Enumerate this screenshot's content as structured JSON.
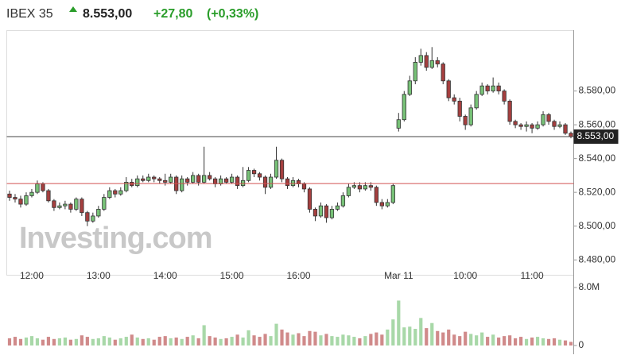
{
  "header": {
    "change": "+27,80",
    "change_percent": "(+0,33%)"
  },
  "chart_data": {
    "type": "candlestick",
    "title": "IBEX 35",
    "watermark": "Investing.com",
    "last_price": {
      "value": 8553,
      "label": "8.553,00"
    },
    "previous_close": 8525.2,
    "categories": [
      null,
      null,
      null,
      null,
      "12:00",
      null,
      null,
      null,
      null,
      null,
      null,
      null,
      null,
      null,
      null,
      null,
      "13:00",
      null,
      null,
      null,
      null,
      null,
      null,
      null,
      null,
      null,
      null,
      null,
      "14:00",
      null,
      null,
      null,
      null,
      null,
      null,
      null,
      null,
      null,
      null,
      null,
      "15:00",
      null,
      null,
      null,
      null,
      null,
      null,
      null,
      null,
      null,
      null,
      null,
      "16:00",
      null,
      null,
      null,
      null,
      null,
      null,
      null,
      null,
      null,
      null,
      null,
      null,
      null,
      null,
      null,
      null,
      null,
      "Mar 11",
      null,
      null,
      null,
      null,
      null,
      null,
      null,
      null,
      null,
      null,
      null,
      "10:00",
      null,
      null,
      null,
      null,
      null,
      null,
      null,
      null,
      null,
      null,
      null,
      "11:00",
      null,
      null,
      null,
      null,
      null,
      null,
      null
    ],
    "open": [
      8519,
      8517,
      8516,
      8513,
      8518,
      8520,
      8525,
      8521,
      8515,
      8511,
      8512,
      8513,
      8510,
      8516,
      8508,
      8503,
      8506,
      8510,
      8517,
      8521,
      8519,
      8521,
      8526,
      8524,
      8528,
      8527,
      8529,
      8528,
      8527,
      8526,
      8529,
      8521,
      8528,
      8526,
      8530,
      8526,
      8530,
      8528,
      8525,
      8528,
      8526,
      8529,
      8524,
      8527,
      8533,
      8531,
      8529,
      8523,
      8529,
      8539,
      8528,
      8524,
      8527,
      8525,
      8522,
      8510,
      8506,
      8512,
      8505,
      8510,
      8512,
      8518,
      8523,
      8524,
      8522,
      8524,
      8523,
      8514,
      8512,
      8514,
      8558,
      8563,
      8578,
      8586,
      8597,
      8601,
      8594,
      8598,
      8596,
      8586,
      8576,
      8574,
      8565,
      8560,
      8570,
      8578,
      8583,
      8580,
      8583,
      8580,
      8574,
      8562,
      8560,
      8559,
      8560,
      8558,
      8560,
      8566,
      8562,
      8559,
      8560,
      8555
    ],
    "high": [
      8521,
      8519,
      8518,
      8520,
      8522,
      8527,
      8526,
      8522,
      8516,
      8514,
      8515,
      8514,
      8517,
      8517,
      8509,
      8508,
      8512,
      8519,
      8523,
      8522,
      8523,
      8529,
      8528,
      8530,
      8530,
      8531,
      8530,
      8529,
      8531,
      8531,
      8530,
      8530,
      8529,
      8532,
      8531,
      8547,
      8532,
      8529,
      8530,
      8529,
      8531,
      8530,
      8535,
      8535,
      8534,
      8532,
      8530,
      8531,
      8547,
      8540,
      8529,
      8529,
      8528,
      8526,
      8523,
      8511,
      8514,
      8513,
      8512,
      8514,
      8520,
      8525,
      8526,
      8526,
      8526,
      8526,
      8524,
      8516,
      8516,
      8525,
      8567,
      8580,
      8589,
      8600,
      8605,
      8603,
      8606,
      8600,
      8597,
      8587,
      8578,
      8576,
      8566,
      8572,
      8580,
      8585,
      8584,
      8588,
      8585,
      8581,
      8575,
      8563,
      8561,
      8562,
      8561,
      8562,
      8568,
      8567,
      8563,
      8562,
      8561,
      8556
    ],
    "low": [
      8515,
      8514,
      8511,
      8512,
      8517,
      8519,
      8520,
      8514,
      8509,
      8510,
      8510,
      8508,
      8509,
      8506,
      8500,
      8502,
      8505,
      8509,
      8516,
      8517,
      8518,
      8520,
      8523,
      8523,
      8526,
      8526,
      8526,
      8525,
      8524,
      8525,
      8519,
      8520,
      8524,
      8525,
      8524,
      8525,
      8527,
      8523,
      8524,
      8525,
      8525,
      8522,
      8523,
      8526,
      8529,
      8527,
      8519,
      8522,
      8528,
      8526,
      8522,
      8523,
      8523,
      8520,
      8508,
      8503,
      8505,
      8502,
      8504,
      8509,
      8511,
      8517,
      8522,
      8520,
      8521,
      8521,
      8512,
      8510,
      8511,
      8513,
      8556,
      8562,
      8577,
      8584,
      8595,
      8592,
      8593,
      8594,
      8584,
      8574,
      8572,
      8562,
      8557,
      8559,
      8569,
      8577,
      8578,
      8579,
      8578,
      8572,
      8560,
      8558,
      8557,
      8556,
      8555,
      8557,
      8559,
      8560,
      8557,
      8558,
      8554,
      8552
    ],
    "close": [
      8517,
      8516,
      8513,
      8518,
      8520,
      8525,
      8521,
      8515,
      8511,
      8512,
      8513,
      8510,
      8516,
      8508,
      8503,
      8506,
      8510,
      8517,
      8521,
      8519,
      8521,
      8526,
      8524,
      8528,
      8527,
      8529,
      8528,
      8527,
      8526,
      8529,
      8521,
      8528,
      8526,
      8530,
      8526,
      8530,
      8528,
      8525,
      8528,
      8526,
      8529,
      8524,
      8527,
      8533,
      8531,
      8529,
      8523,
      8529,
      8539,
      8528,
      8524,
      8527,
      8525,
      8522,
      8510,
      8506,
      8512,
      8505,
      8510,
      8512,
      8518,
      8523,
      8524,
      8522,
      8524,
      8523,
      8514,
      8512,
      8514,
      8524,
      8563,
      8578,
      8586,
      8597,
      8601,
      8594,
      8598,
      8596,
      8586,
      8576,
      8574,
      8565,
      8560,
      8570,
      8578,
      8583,
      8580,
      8583,
      8580,
      8574,
      8562,
      8560,
      8559,
      8560,
      8558,
      8560,
      8566,
      8562,
      8559,
      8560,
      8555,
      8553
    ],
    "up_color": "#77c177",
    "down_color": "#a53f3f",
    "ylim": [
      8474,
      8616
    ],
    "yticks": [
      {
        "value": 8480,
        "label": "8.480,00"
      },
      {
        "value": 8500,
        "label": "8.500,00"
      },
      {
        "value": 8520,
        "label": "8.520,00"
      },
      {
        "value": 8540,
        "label": "8.540,00"
      },
      {
        "value": 8560,
        "label": "8.560,00"
      },
      {
        "value": 8580,
        "label": "8.580,00"
      }
    ],
    "volume": {
      "up_color": "#a8d8a8",
      "down_color": "#d08a8a",
      "ylim": [
        0,
        8
      ],
      "yticks": [
        {
          "value": 8,
          "label": "8.0M"
        },
        0
      ],
      "values": [
        1.0,
        1.2,
        0.9,
        1.1,
        1.3,
        1.0,
        0.8,
        1.2,
        0.9,
        1.0,
        1.1,
        0.8,
        0.9,
        1.4,
        1.2,
        0.9,
        1.0,
        1.3,
        1.1,
        0.8,
        1.0,
        1.2,
        1.5,
        1.1,
        0.9,
        1.0,
        0.8,
        1.2,
        1.3,
        1.0,
        1.1,
        0.9,
        1.2,
        1.4,
        1.0,
        2.8,
        1.3,
        1.1,
        0.9,
        1.0,
        1.2,
        1.5,
        1.1,
        2.1,
        1.4,
        1.2,
        1.6,
        1.3,
        3.0,
        2.2,
        1.8,
        1.5,
        1.7,
        1.3,
        2.0,
        1.9,
        1.4,
        1.6,
        1.3,
        1.2,
        1.5,
        1.4,
        1.2,
        1.0,
        1.3,
        1.6,
        1.8,
        1.5,
        2.2,
        3.6,
        6.2,
        2.5,
        2.6,
        2.3,
        3.8,
        2.4,
        3.1,
        2.0,
        1.8,
        2.2,
        1.5,
        1.3,
        1.9,
        1.6,
        1.4,
        1.8,
        1.2,
        1.5,
        1.1,
        1.3,
        1.4,
        1.0,
        1.2,
        0.9,
        1.1,
        1.2,
        1.0,
        0.9,
        1.0,
        0.8,
        0.7,
        0.5
      ]
    }
  }
}
